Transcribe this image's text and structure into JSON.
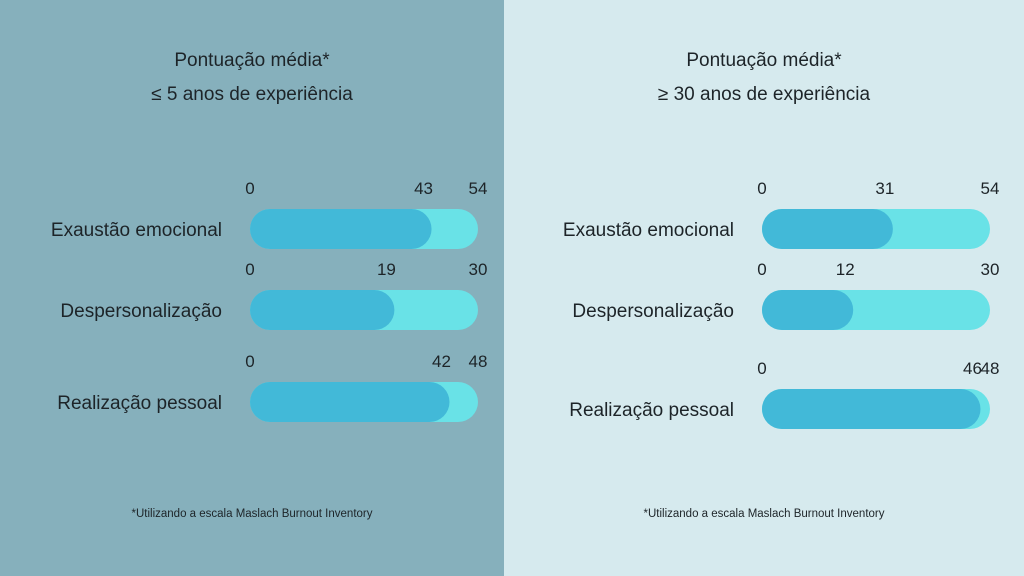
{
  "colors": {
    "left_bg": "#86b0bc",
    "right_bg": "#d6eaee",
    "track": "#69e2e7",
    "fill": "#42b9d8"
  },
  "panels": [
    {
      "title_line1": "Pontuação média*",
      "title_line2": "≤ 5 anos de experiência",
      "footnote": "*Utilizando a escala Maslach Burnout Inventory"
    },
    {
      "title_line1": "Pontuação média*",
      "title_line2": "≥ 30 anos de experiência",
      "footnote": "*Utilizando a escala Maslach Burnout Inventory"
    }
  ],
  "chart_data": [
    {
      "type": "bar",
      "orientation": "horizontal",
      "title": "Pontuação média* ≤ 5 anos de experiência",
      "categories": [
        "Exaustão emocional",
        "Despersonalização",
        "Realização pessoal"
      ],
      "values": [
        43,
        19,
        42
      ],
      "min": [
        0,
        0,
        0
      ],
      "max": [
        54,
        30,
        48
      ]
    },
    {
      "type": "bar",
      "orientation": "horizontal",
      "title": "Pontuação média* ≥ 30 anos de experiência",
      "categories": [
        "Exaustão emocional",
        "Despersonalização",
        "Realização pessoal"
      ],
      "values": [
        31,
        12,
        46
      ],
      "min": [
        0,
        0,
        0
      ],
      "max": [
        54,
        30,
        48
      ]
    }
  ]
}
